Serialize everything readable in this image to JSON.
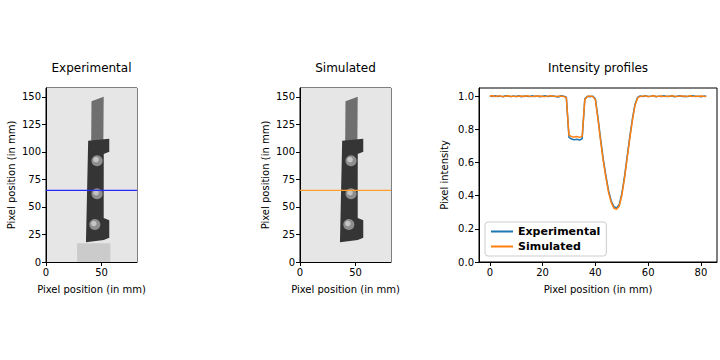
{
  "chart_data": [
    {
      "type": "image",
      "title": "Experimental",
      "x_label": "Pixel position (in mm)",
      "y_label": "Pixel position (in mm)",
      "xlim": [
        0,
        82
      ],
      "ylim": [
        0,
        158
      ],
      "xticks": [
        0,
        50
      ],
      "yticks": [
        0,
        25,
        50,
        75,
        100,
        125,
        150
      ],
      "profile_y": 65,
      "color": "#2a2aff"
    },
    {
      "type": "image",
      "title": "Simulated",
      "x_label": "Pixel position (in mm)",
      "y_label": "Pixel position (in mm)",
      "xlim": [
        0,
        82
      ],
      "ylim": [
        0,
        158
      ],
      "xticks": [
        0,
        50
      ],
      "yticks": [
        0,
        25,
        50,
        75,
        100,
        125,
        150
      ],
      "profile_y": 65,
      "color": "#ff9f2a"
    },
    {
      "type": "line",
      "title": "Intensity profiles",
      "x_label": "Pixel position (in mm)",
      "y_label": "Pixel intensity",
      "xlim": [
        -4.1,
        86.1
      ],
      "ylim": [
        0,
        1.05
      ],
      "xticks": [
        0,
        20,
        40,
        60,
        80
      ],
      "yticks": [
        {
          "value": 0,
          "label": "0.0"
        },
        {
          "value": 0.2,
          "label": "0.2"
        },
        {
          "value": 0.4,
          "label": "0.4"
        },
        {
          "value": 0.6,
          "label": "0.6"
        },
        {
          "value": 0.8,
          "label": "0.8"
        },
        {
          "value": 1.0,
          "label": "1.0"
        }
      ],
      "legend": "lower left",
      "x": [
        0,
        1,
        2,
        3,
        4,
        5,
        6,
        7,
        8,
        9,
        10,
        11,
        12,
        13,
        14,
        15,
        16,
        17,
        18,
        19,
        20,
        21,
        22,
        23,
        24,
        25,
        26,
        27,
        28,
        29,
        30,
        31,
        32,
        33,
        34,
        35,
        36,
        37,
        38,
        39,
        40,
        41,
        42,
        43,
        44,
        45,
        46,
        47,
        48,
        49,
        50,
        51,
        52,
        53,
        54,
        55,
        56,
        57,
        58,
        59,
        60,
        61,
        62,
        63,
        64,
        65,
        66,
        67,
        68,
        69,
        70,
        71,
        72,
        73,
        74,
        75,
        76,
        77,
        78,
        79,
        80,
        81,
        82
      ],
      "series": [
        {
          "name": "Experimental",
          "color": "#1f77b4",
          "values": [
            1.002,
            0.998,
            1.003,
            0.999,
            1.001,
            0.997,
            1.004,
            1.0,
            0.998,
            1.002,
            0.999,
            1.003,
            0.997,
            1.001,
            1.0,
            0.998,
            1.004,
            0.999,
            1.002,
            0.997,
            1.001,
            1.003,
            0.998,
            1.0,
            1.002,
            0.999,
            0.996,
            1.003,
            1.0,
            0.995,
            0.752,
            0.742,
            0.738,
            0.741,
            0.736,
            0.744,
            0.985,
            1.0,
            0.997,
            1.001,
            0.985,
            0.87,
            0.74,
            0.62,
            0.52,
            0.43,
            0.37,
            0.335,
            0.325,
            0.345,
            0.41,
            0.51,
            0.63,
            0.75,
            0.86,
            0.95,
            0.993,
            1.002,
            0.998,
            1.003,
            0.999,
            1.0,
            1.004,
            0.997,
            1.001,
            0.999,
            1.003,
            0.998,
            1.0,
            1.002,
            0.997,
            1.001,
            1.003,
            0.999,
            1.0,
            0.998,
            1.002,
            1.004,
            0.999,
            1.001,
            0.997,
            1.0,
            1.002
          ]
        },
        {
          "name": "Simulated",
          "color": "#ff7f0e",
          "values": [
            1.0,
            1.003,
            0.999,
            1.001,
            1.002,
            0.998,
            1.0,
            1.003,
            0.999,
            1.001,
            0.998,
            1.0,
            1.002,
            0.999,
            1.003,
            1.0,
            0.998,
            1.001,
            1.0,
            1.002,
            0.999,
            0.998,
            1.001,
            1.003,
            1.0,
            0.998,
            1.0,
            1.001,
            0.999,
            0.99,
            0.765,
            0.756,
            0.754,
            0.757,
            0.752,
            0.758,
            0.98,
            0.999,
            1.002,
            0.998,
            0.98,
            0.86,
            0.73,
            0.61,
            0.51,
            0.42,
            0.36,
            0.325,
            0.318,
            0.335,
            0.4,
            0.5,
            0.62,
            0.74,
            0.85,
            0.945,
            0.99,
            0.999,
            1.001,
            1.002,
            0.998,
            1.0,
            1.003,
            0.999,
            1.0,
            1.002,
            0.998,
            1.001,
            0.999,
            1.003,
            1.0,
            0.998,
            1.001,
            1.002,
            0.999,
            1.0,
            1.003,
            0.998,
            1.001,
            0.999,
            1.002,
            1.0,
            0.999
          ]
        }
      ]
    }
  ]
}
